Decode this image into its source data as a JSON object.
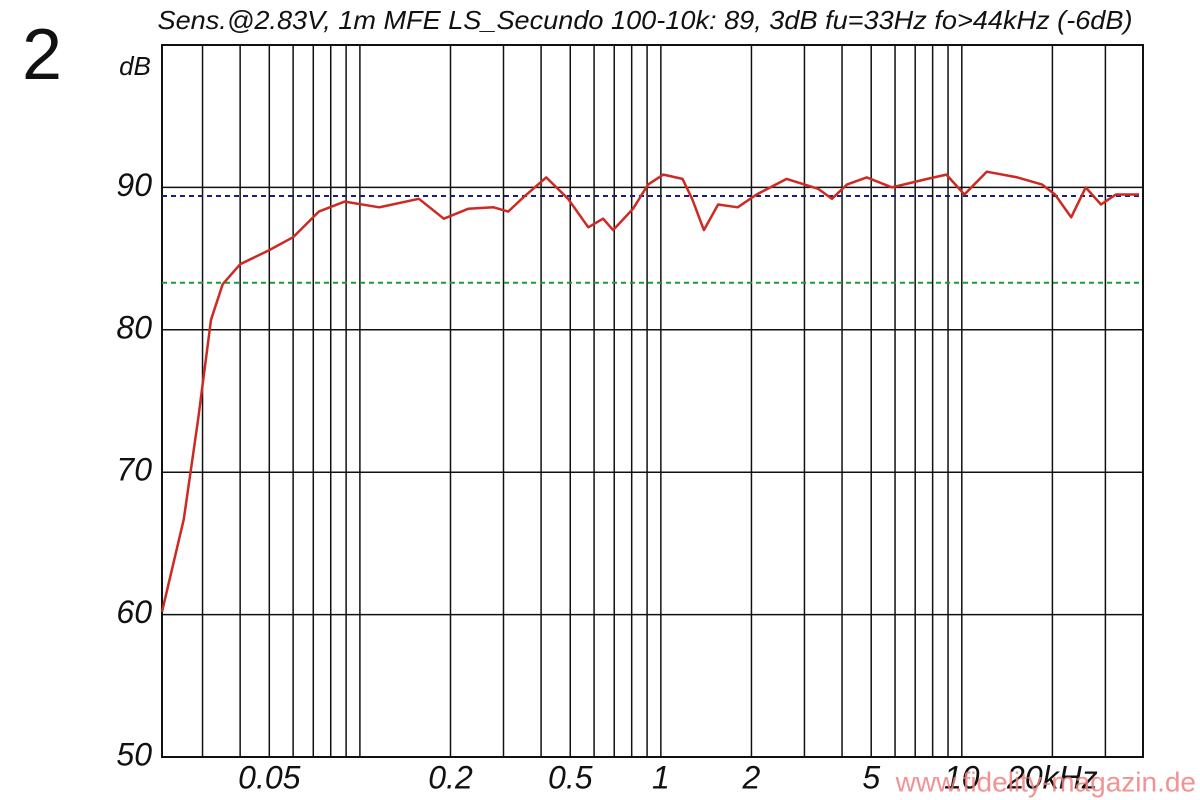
{
  "chart_data": {
    "type": "line",
    "title": "Sens.@2.83V, 1m MFE LS_Secundo 100-10k: 89, 3dB fu=33Hz fo>44kHz (-6dB)",
    "panel_label": "2",
    "y_label": "dB",
    "watermark": "www.fidelity-magazin.de",
    "xscale": "log",
    "xlim": [
      0.022,
      40
    ],
    "ylim": [
      50,
      100
    ],
    "xticks": [
      0.05,
      0.2,
      0.5,
      1,
      2,
      5,
      10,
      {
        "value": 20,
        "label": "20kHz"
      }
    ],
    "xgrid": [
      0.03,
      0.04,
      0.05,
      0.06,
      0.07,
      0.08,
      0.09,
      0.1,
      0.2,
      0.3,
      0.4,
      0.5,
      0.6,
      0.7,
      0.8,
      0.9,
      1,
      2,
      3,
      4,
      5,
      6,
      7,
      8,
      9,
      10,
      20,
      30
    ],
    "yticks": [
      50,
      60,
      70,
      80,
      90
    ],
    "grid": true,
    "reference_lines": [
      {
        "value": 89.4,
        "color": "#1c1c80"
      },
      {
        "value": 83.3,
        "color": "#1a9a3a"
      }
    ],
    "x": [
      0.022,
      0.026,
      0.029,
      0.032,
      0.035,
      0.04,
      0.05,
      0.06,
      0.073,
      0.089,
      0.116,
      0.157,
      0.19,
      0.229,
      0.278,
      0.311,
      0.349,
      0.416,
      0.492,
      0.574,
      0.643,
      0.694,
      0.808,
      0.906,
      1.02,
      1.18,
      1.27,
      1.39,
      1.55,
      1.8,
      2.08,
      2.62,
      3.33,
      3.7,
      4.15,
      4.83,
      5.86,
      7.68,
      8.89,
      10.2,
      12.1,
      15.3,
      18.5,
      20.4,
      23.1,
      25.8,
      29.0,
      32.5,
      38.8
    ],
    "series": [
      {
        "color": "#cc2a22",
        "values": [
          60.2,
          66.7,
          73.7,
          80.7,
          83.2,
          84.6,
          85.6,
          86.5,
          88.3,
          89.0,
          88.6,
          89.2,
          87.8,
          88.5,
          88.6,
          88.3,
          89.3,
          90.7,
          89.2,
          87.2,
          87.8,
          87.0,
          88.5,
          90.2,
          90.9,
          90.6,
          89.2,
          87.0,
          88.8,
          88.6,
          89.5,
          90.6,
          89.9,
          89.2,
          90.2,
          90.7,
          90.0,
          90.6,
          90.9,
          89.5,
          91.1,
          90.7,
          90.2,
          89.5,
          87.9,
          90.0,
          88.8,
          89.5,
          89.5
        ]
      }
    ]
  }
}
